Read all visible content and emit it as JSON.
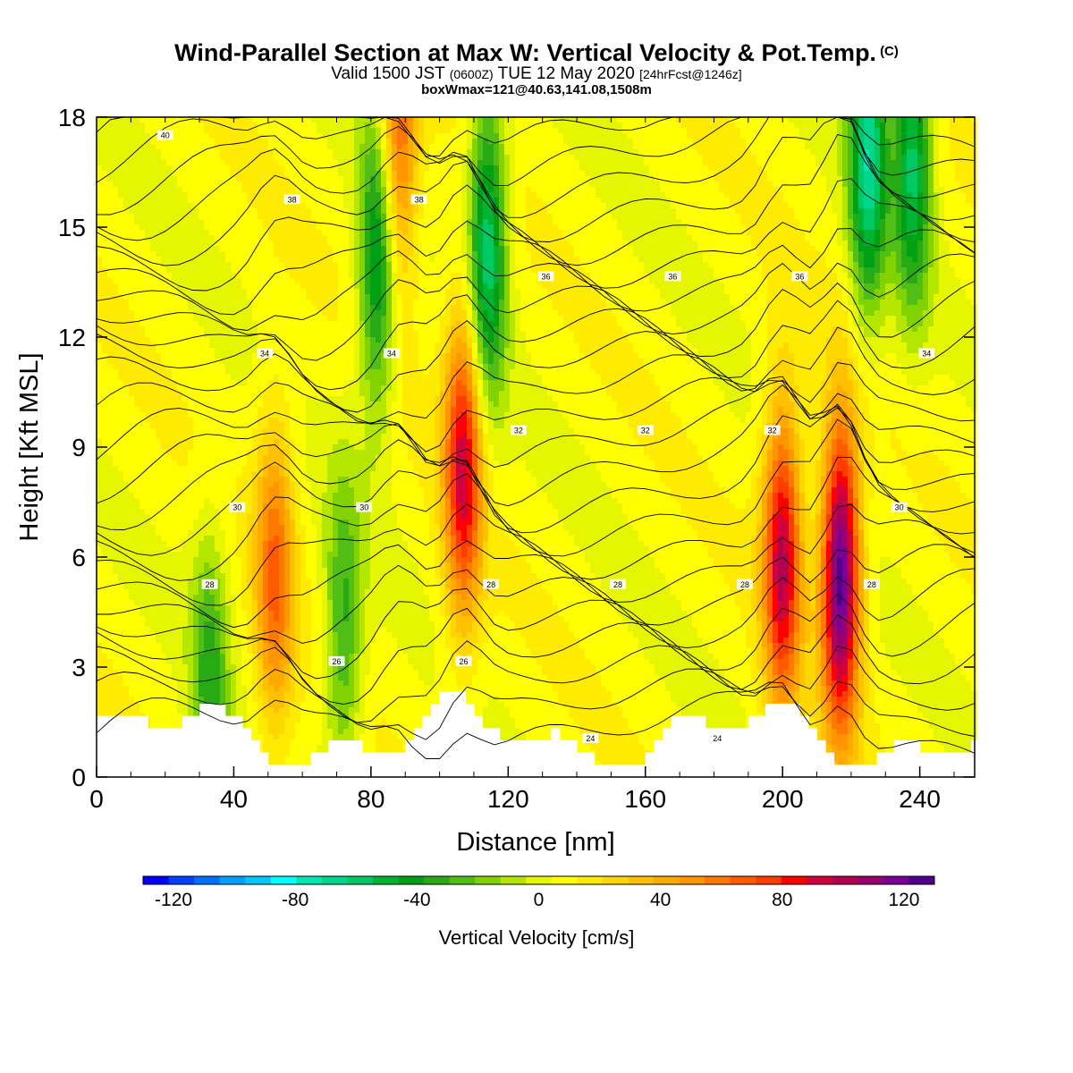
{
  "title": {
    "main": "Wind-Parallel Section at Max W: Vertical Velocity & Pot.Temp.",
    "copyright": "(C)",
    "valid_a": "Valid 1500 JST",
    "valid_b": "(0600Z)",
    "valid_c": "TUE 12 May 2020",
    "valid_d": "[24hrFcst@1246z]",
    "box": "boxWmax=121@40.63,141.08,1508m"
  },
  "chart_data": {
    "type": "heatmap",
    "xlabel": "Distance [nm]",
    "ylabel": "Height [Kft MSL]",
    "xlim": [
      0,
      256
    ],
    "ylim": [
      0,
      18
    ],
    "x_ticks": [
      "0",
      "40",
      "80",
      "120",
      "160",
      "200",
      "240"
    ],
    "y_ticks": [
      "0",
      "3",
      "6",
      "9",
      "12",
      "15",
      "18"
    ],
    "colorbar": {
      "label": "Vertical Velocity [cm/s]",
      "ticks": [
        "-120",
        "-80",
        "-40",
        "0",
        "40",
        "80",
        "120"
      ],
      "min": -130,
      "max": 130,
      "colors": [
        "#0000ff",
        "#0040ff",
        "#0070ff",
        "#00a0ff",
        "#00c8ff",
        "#00ffff",
        "#00e6b4",
        "#00d68c",
        "#00c864",
        "#00b432",
        "#00a014",
        "#28aa14",
        "#50be14",
        "#82d200",
        "#b4e600",
        "#e6f500",
        "#ffff00",
        "#ffeb00",
        "#ffd700",
        "#ffc000",
        "#ffaa00",
        "#ff9600",
        "#ff7800",
        "#ff5a00",
        "#ff3c00",
        "#ff0000",
        "#d2003c",
        "#b40050",
        "#9a006e",
        "#7a0096",
        "#50008c"
      ]
    },
    "w_cm_s": {
      "updraft_cores": [
        {
          "x": 52,
          "z_kft": 5.5,
          "w": 55
        },
        {
          "x": 88,
          "z_kft": 17.5,
          "w": 60
        },
        {
          "x": 107,
          "z_kft": 8.5,
          "w": 85
        },
        {
          "x": 200,
          "z_kft": 6,
          "w": 90
        },
        {
          "x": 217,
          "z_kft": 5.5,
          "w": 121
        }
      ],
      "downdraft_cores": [
        {
          "x": 33,
          "z_kft": 2.5,
          "w": -40
        },
        {
          "x": 72,
          "z_kft": 4,
          "w": -40
        },
        {
          "x": 82,
          "z_kft": 14,
          "w": -60
        },
        {
          "x": 114,
          "z_kft": 14.5,
          "w": -70
        },
        {
          "x": 225,
          "z_kft": 17,
          "w": -75
        },
        {
          "x": 238,
          "z_kft": 17,
          "w": -65
        }
      ]
    },
    "theta_contours": {
      "labels": [
        "40",
        "38",
        "38",
        "36",
        "36",
        "36",
        "34",
        "34",
        "34",
        "32",
        "32",
        "32",
        "30",
        "30",
        "30",
        "28",
        "28",
        "28",
        "28",
        "28",
        "26",
        "26",
        "24",
        "24"
      ]
    }
  }
}
